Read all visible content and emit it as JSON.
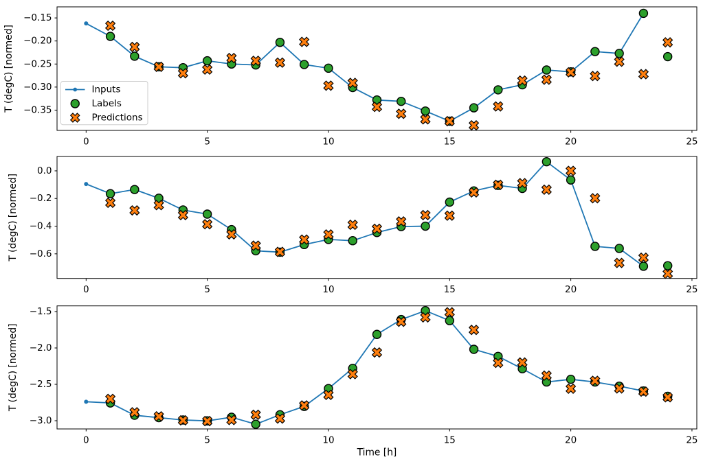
{
  "figure": {
    "background": "#ffffff",
    "text_color": "#000000",
    "spine_color": "#000000"
  },
  "colors": {
    "inputs": "#1f77b4",
    "labels": "#2ca02c",
    "predictions": "#ff7f0e",
    "marker_edge": "#000000",
    "legend_border": "#cccccc"
  },
  "legend": {
    "entries": [
      "Inputs",
      "Labels",
      "Predictions"
    ],
    "position": "center left"
  },
  "chart_data": [
    {
      "type": "line",
      "title": "",
      "xlabel": "",
      "ylabel": "T (degC) [normed]",
      "xlim": [
        -1.2,
        25.2
      ],
      "ylim": [
        -0.394,
        -0.126
      ],
      "grid": false,
      "legend": true,
      "xticks": {
        "values": [
          0,
          5,
          10,
          15,
          20,
          25
        ],
        "labels": [
          "0",
          "5",
          "10",
          "15",
          "20",
          "25"
        ]
      },
      "yticks": {
        "values": [
          -0.15,
          -0.2,
          -0.25,
          -0.3,
          -0.35
        ],
        "labels": [
          "−0.15",
          "−0.20",
          "−0.25",
          "−0.30",
          "−0.35"
        ]
      },
      "series": [
        {
          "name": "Inputs",
          "kind": "line-dot",
          "color": "#1f77b4",
          "x": [
            0,
            1,
            2,
            3,
            4,
            5,
            6,
            7,
            8,
            9,
            10,
            11,
            12,
            13,
            14,
            15,
            16,
            17,
            18,
            19,
            20,
            21,
            22,
            23
          ],
          "y": [
            -0.162,
            -0.19,
            -0.233,
            -0.256,
            -0.258,
            -0.243,
            -0.25,
            -0.252,
            -0.203,
            -0.251,
            -0.259,
            -0.301,
            -0.328,
            -0.331,
            -0.352,
            -0.374,
            -0.345,
            -0.306,
            -0.295,
            -0.263,
            -0.267,
            -0.223,
            -0.227,
            -0.14
          ]
        },
        {
          "name": "Labels",
          "kind": "scatter-circle",
          "color": "#2ca02c",
          "edge": "#000000",
          "x": [
            1,
            2,
            3,
            4,
            5,
            6,
            7,
            8,
            9,
            10,
            11,
            12,
            13,
            14,
            15,
            16,
            17,
            18,
            19,
            20,
            21,
            22,
            23,
            24
          ],
          "y": [
            -0.19,
            -0.233,
            -0.256,
            -0.258,
            -0.243,
            -0.25,
            -0.252,
            -0.203,
            -0.251,
            -0.259,
            -0.301,
            -0.328,
            -0.331,
            -0.352,
            -0.374,
            -0.345,
            -0.306,
            -0.295,
            -0.263,
            -0.267,
            -0.223,
            -0.227,
            -0.14,
            -0.234
          ]
        },
        {
          "name": "Predictions",
          "kind": "scatter-x",
          "color": "#ff7f0e",
          "edge": "#000000",
          "x": [
            1,
            2,
            3,
            4,
            5,
            6,
            7,
            8,
            9,
            10,
            11,
            12,
            13,
            14,
            15,
            16,
            17,
            18,
            19,
            20,
            21,
            22,
            23,
            24
          ],
          "y": [
            -0.167,
            -0.213,
            -0.256,
            -0.27,
            -0.262,
            -0.237,
            -0.243,
            -0.247,
            -0.202,
            -0.297,
            -0.291,
            -0.343,
            -0.358,
            -0.37,
            -0.374,
            -0.383,
            -0.342,
            -0.286,
            -0.284,
            -0.268,
            -0.276,
            -0.245,
            -0.272,
            -0.203
          ]
        }
      ]
    },
    {
      "type": "line",
      "title": "",
      "xlabel": "",
      "ylabel": "T (degC) [normed]",
      "xlim": [
        -1.2,
        25.2
      ],
      "ylim": [
        -0.778,
        0.104
      ],
      "grid": false,
      "legend": false,
      "xticks": {
        "values": [
          0,
          5,
          10,
          15,
          20,
          25
        ],
        "labels": [
          "0",
          "5",
          "10",
          "15",
          "20",
          "25"
        ]
      },
      "yticks": {
        "values": [
          0.0,
          -0.2,
          -0.4,
          -0.6
        ],
        "labels": [
          "0.0",
          "−0.2",
          "−0.4",
          "−0.6"
        ]
      },
      "series": [
        {
          "name": "Inputs",
          "kind": "line-dot",
          "color": "#1f77b4",
          "x": [
            0,
            1,
            2,
            3,
            4,
            5,
            6,
            7,
            8,
            9,
            10,
            11,
            12,
            13,
            14,
            15,
            16,
            17,
            18,
            19,
            20,
            21,
            22,
            23
          ],
          "y": [
            -0.095,
            -0.165,
            -0.135,
            -0.198,
            -0.283,
            -0.313,
            -0.425,
            -0.578,
            -0.588,
            -0.533,
            -0.496,
            -0.505,
            -0.446,
            -0.403,
            -0.4,
            -0.226,
            -0.145,
            -0.105,
            -0.127,
            0.066,
            -0.066,
            -0.546,
            -0.561,
            -0.69
          ]
        },
        {
          "name": "Labels",
          "kind": "scatter-circle",
          "color": "#2ca02c",
          "edge": "#000000",
          "x": [
            1,
            2,
            3,
            4,
            5,
            6,
            7,
            8,
            9,
            10,
            11,
            12,
            13,
            14,
            15,
            16,
            17,
            18,
            19,
            20,
            21,
            22,
            23,
            24
          ],
          "y": [
            -0.165,
            -0.135,
            -0.198,
            -0.283,
            -0.313,
            -0.425,
            -0.578,
            -0.588,
            -0.533,
            -0.496,
            -0.505,
            -0.446,
            -0.403,
            -0.4,
            -0.226,
            -0.145,
            -0.105,
            -0.127,
            0.066,
            -0.066,
            -0.546,
            -0.561,
            -0.69,
            -0.686
          ]
        },
        {
          "name": "Predictions",
          "kind": "scatter-x",
          "color": "#ff7f0e",
          "edge": "#000000",
          "x": [
            1,
            2,
            3,
            4,
            5,
            6,
            7,
            8,
            9,
            10,
            11,
            12,
            13,
            14,
            15,
            16,
            17,
            18,
            19,
            20,
            21,
            22,
            23,
            24
          ],
          "y": [
            -0.231,
            -0.286,
            -0.248,
            -0.32,
            -0.386,
            -0.459,
            -0.541,
            -0.586,
            -0.497,
            -0.46,
            -0.39,
            -0.419,
            -0.366,
            -0.32,
            -0.324,
            -0.156,
            -0.101,
            -0.089,
            -0.136,
            0.0,
            -0.198,
            -0.666,
            -0.628,
            -0.744
          ]
        }
      ]
    },
    {
      "type": "line",
      "title": "",
      "xlabel": "Time [h]",
      "ylabel": "T (degC) [normed]",
      "xlim": [
        -1.2,
        25.2
      ],
      "ylim": [
        -3.113,
        -1.422
      ],
      "grid": false,
      "legend": false,
      "xticks": {
        "values": [
          0,
          5,
          10,
          15,
          20,
          25
        ],
        "labels": [
          "0",
          "5",
          "10",
          "15",
          "20",
          "25"
        ]
      },
      "yticks": {
        "values": [
          -1.5,
          -2.0,
          -2.5,
          -3.0
        ],
        "labels": [
          "−1.5",
          "−2.0",
          "−2.5",
          "−3.0"
        ]
      },
      "series": [
        {
          "name": "Inputs",
          "kind": "line-dot",
          "color": "#1f77b4",
          "x": [
            0,
            1,
            2,
            3,
            4,
            5,
            6,
            7,
            8,
            9,
            10,
            11,
            12,
            13,
            14,
            15,
            16,
            17,
            18,
            19,
            20,
            21,
            22,
            23
          ],
          "y": [
            -2.739,
            -2.756,
            -2.925,
            -2.958,
            -2.99,
            -3.002,
            -2.952,
            -3.048,
            -2.918,
            -2.803,
            -2.558,
            -2.28,
            -1.814,
            -1.61,
            -1.488,
            -1.625,
            -2.019,
            -2.116,
            -2.286,
            -2.468,
            -2.431,
            -2.468,
            -2.525,
            -2.592
          ]
        },
        {
          "name": "Labels",
          "kind": "scatter-circle",
          "color": "#2ca02c",
          "edge": "#000000",
          "x": [
            1,
            2,
            3,
            4,
            5,
            6,
            7,
            8,
            9,
            10,
            11,
            12,
            13,
            14,
            15,
            16,
            17,
            18,
            19,
            20,
            21,
            22,
            23,
            24
          ],
          "y": [
            -2.756,
            -2.925,
            -2.958,
            -2.99,
            -3.002,
            -2.952,
            -3.048,
            -2.918,
            -2.803,
            -2.558,
            -2.28,
            -1.814,
            -1.61,
            -1.488,
            -1.625,
            -2.019,
            -2.116,
            -2.286,
            -2.468,
            -2.431,
            -2.468,
            -2.525,
            -2.592,
            -2.665
          ]
        },
        {
          "name": "Predictions",
          "kind": "scatter-x",
          "color": "#ff7f0e",
          "edge": "#000000",
          "x": [
            1,
            2,
            3,
            4,
            5,
            6,
            7,
            8,
            9,
            10,
            11,
            12,
            13,
            14,
            15,
            16,
            17,
            18,
            19,
            20,
            21,
            22,
            23,
            24
          ],
          "y": [
            -2.7,
            -2.884,
            -2.94,
            -2.995,
            -3.005,
            -2.99,
            -2.918,
            -2.97,
            -2.79,
            -2.645,
            -2.36,
            -2.062,
            -1.64,
            -1.58,
            -1.51,
            -1.752,
            -2.205,
            -2.2,
            -2.38,
            -2.56,
            -2.452,
            -2.557,
            -2.6,
            -2.678
          ]
        }
      ]
    }
  ]
}
